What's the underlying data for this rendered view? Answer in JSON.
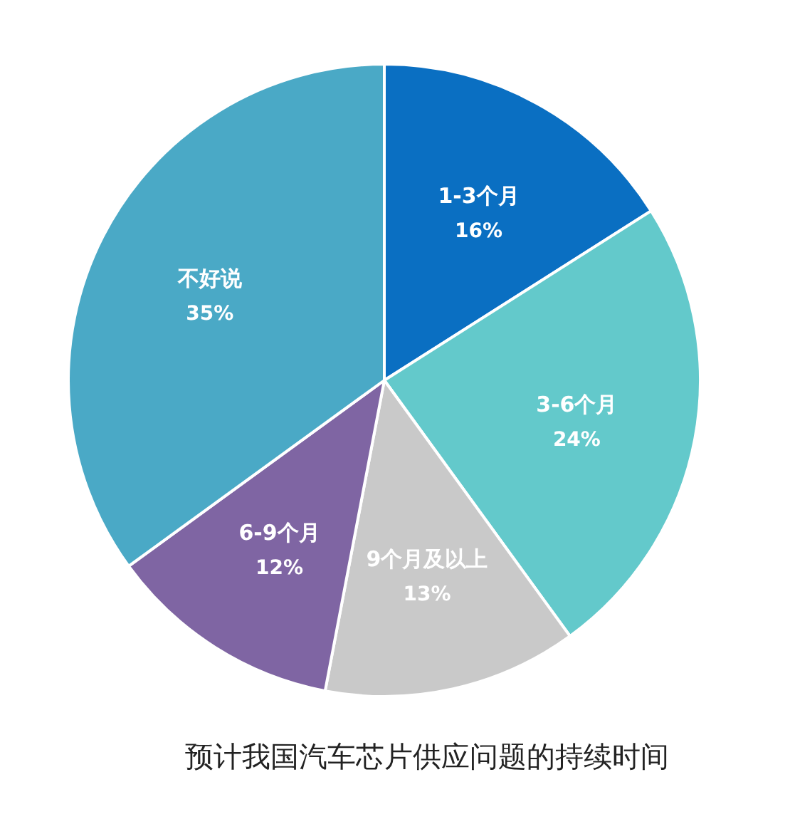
{
  "chart_data": {
    "type": "pie",
    "title": "预计我国汽车芯片供应问题的持续时间",
    "categories": [
      "1-3个月",
      "3-6个月",
      "9个月及以上",
      "6-9个月",
      "不好说"
    ],
    "values": [
      16,
      24,
      13,
      12,
      35
    ],
    "colors": [
      "#0a6fc2",
      "#63c9cb",
      "#c9c9c9",
      "#7f65a3",
      "#4aa9c6"
    ],
    "value_labels": [
      "16%",
      "24%",
      "13%",
      "12%",
      "35%"
    ],
    "legend": false
  }
}
